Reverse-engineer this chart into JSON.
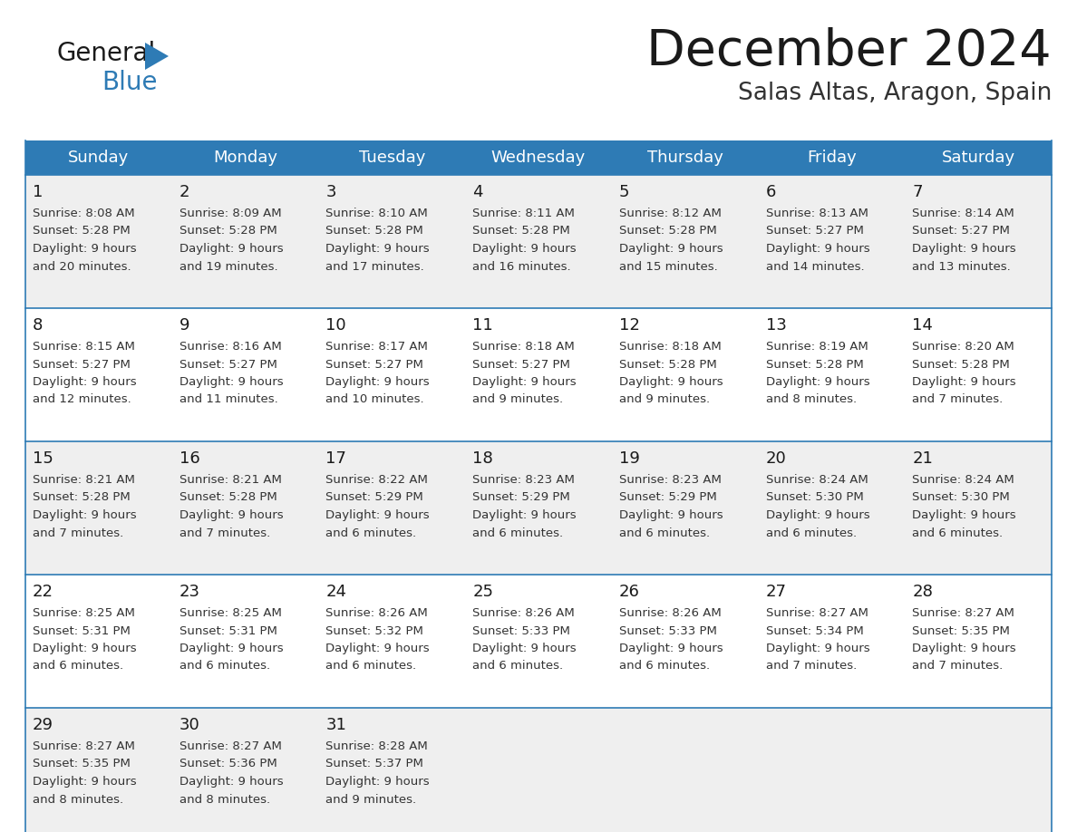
{
  "title": "December 2024",
  "subtitle": "Salas Altas, Aragon, Spain",
  "header_color": "#2E7BB5",
  "header_text_color": "#FFFFFF",
  "day_names": [
    "Sunday",
    "Monday",
    "Tuesday",
    "Wednesday",
    "Thursday",
    "Friday",
    "Saturday"
  ],
  "bg_color": "#FFFFFF",
  "cell_bg_even": "#EFEFEF",
  "cell_bg_odd": "#FFFFFF",
  "border_color": "#2E7BB5",
  "text_color": "#333333",
  "logo_general_color": "#1a1a1a",
  "logo_blue_color": "#2E7BB5",
  "title_color": "#1a1a1a",
  "subtitle_color": "#333333",
  "days": [
    {
      "day": 1,
      "col": 0,
      "row": 0,
      "sunrise": "8:08 AM",
      "sunset": "5:28 PM",
      "daylight_h": "9 hours",
      "daylight_m": "and 20 minutes."
    },
    {
      "day": 2,
      "col": 1,
      "row": 0,
      "sunrise": "8:09 AM",
      "sunset": "5:28 PM",
      "daylight_h": "9 hours",
      "daylight_m": "and 19 minutes."
    },
    {
      "day": 3,
      "col": 2,
      "row": 0,
      "sunrise": "8:10 AM",
      "sunset": "5:28 PM",
      "daylight_h": "9 hours",
      "daylight_m": "and 17 minutes."
    },
    {
      "day": 4,
      "col": 3,
      "row": 0,
      "sunrise": "8:11 AM",
      "sunset": "5:28 PM",
      "daylight_h": "9 hours",
      "daylight_m": "and 16 minutes."
    },
    {
      "day": 5,
      "col": 4,
      "row": 0,
      "sunrise": "8:12 AM",
      "sunset": "5:28 PM",
      "daylight_h": "9 hours",
      "daylight_m": "and 15 minutes."
    },
    {
      "day": 6,
      "col": 5,
      "row": 0,
      "sunrise": "8:13 AM",
      "sunset": "5:27 PM",
      "daylight_h": "9 hours",
      "daylight_m": "and 14 minutes."
    },
    {
      "day": 7,
      "col": 6,
      "row": 0,
      "sunrise": "8:14 AM",
      "sunset": "5:27 PM",
      "daylight_h": "9 hours",
      "daylight_m": "and 13 minutes."
    },
    {
      "day": 8,
      "col": 0,
      "row": 1,
      "sunrise": "8:15 AM",
      "sunset": "5:27 PM",
      "daylight_h": "9 hours",
      "daylight_m": "and 12 minutes."
    },
    {
      "day": 9,
      "col": 1,
      "row": 1,
      "sunrise": "8:16 AM",
      "sunset": "5:27 PM",
      "daylight_h": "9 hours",
      "daylight_m": "and 11 minutes."
    },
    {
      "day": 10,
      "col": 2,
      "row": 1,
      "sunrise": "8:17 AM",
      "sunset": "5:27 PM",
      "daylight_h": "9 hours",
      "daylight_m": "and 10 minutes."
    },
    {
      "day": 11,
      "col": 3,
      "row": 1,
      "sunrise": "8:18 AM",
      "sunset": "5:27 PM",
      "daylight_h": "9 hours",
      "daylight_m": "and 9 minutes."
    },
    {
      "day": 12,
      "col": 4,
      "row": 1,
      "sunrise": "8:18 AM",
      "sunset": "5:28 PM",
      "daylight_h": "9 hours",
      "daylight_m": "and 9 minutes."
    },
    {
      "day": 13,
      "col": 5,
      "row": 1,
      "sunrise": "8:19 AM",
      "sunset": "5:28 PM",
      "daylight_h": "9 hours",
      "daylight_m": "and 8 minutes."
    },
    {
      "day": 14,
      "col": 6,
      "row": 1,
      "sunrise": "8:20 AM",
      "sunset": "5:28 PM",
      "daylight_h": "9 hours",
      "daylight_m": "and 7 minutes."
    },
    {
      "day": 15,
      "col": 0,
      "row": 2,
      "sunrise": "8:21 AM",
      "sunset": "5:28 PM",
      "daylight_h": "9 hours",
      "daylight_m": "and 7 minutes."
    },
    {
      "day": 16,
      "col": 1,
      "row": 2,
      "sunrise": "8:21 AM",
      "sunset": "5:28 PM",
      "daylight_h": "9 hours",
      "daylight_m": "and 7 minutes."
    },
    {
      "day": 17,
      "col": 2,
      "row": 2,
      "sunrise": "8:22 AM",
      "sunset": "5:29 PM",
      "daylight_h": "9 hours",
      "daylight_m": "and 6 minutes."
    },
    {
      "day": 18,
      "col": 3,
      "row": 2,
      "sunrise": "8:23 AM",
      "sunset": "5:29 PM",
      "daylight_h": "9 hours",
      "daylight_m": "and 6 minutes."
    },
    {
      "day": 19,
      "col": 4,
      "row": 2,
      "sunrise": "8:23 AM",
      "sunset": "5:29 PM",
      "daylight_h": "9 hours",
      "daylight_m": "and 6 minutes."
    },
    {
      "day": 20,
      "col": 5,
      "row": 2,
      "sunrise": "8:24 AM",
      "sunset": "5:30 PM",
      "daylight_h": "9 hours",
      "daylight_m": "and 6 minutes."
    },
    {
      "day": 21,
      "col": 6,
      "row": 2,
      "sunrise": "8:24 AM",
      "sunset": "5:30 PM",
      "daylight_h": "9 hours",
      "daylight_m": "and 6 minutes."
    },
    {
      "day": 22,
      "col": 0,
      "row": 3,
      "sunrise": "8:25 AM",
      "sunset": "5:31 PM",
      "daylight_h": "9 hours",
      "daylight_m": "and 6 minutes."
    },
    {
      "day": 23,
      "col": 1,
      "row": 3,
      "sunrise": "8:25 AM",
      "sunset": "5:31 PM",
      "daylight_h": "9 hours",
      "daylight_m": "and 6 minutes."
    },
    {
      "day": 24,
      "col": 2,
      "row": 3,
      "sunrise": "8:26 AM",
      "sunset": "5:32 PM",
      "daylight_h": "9 hours",
      "daylight_m": "and 6 minutes."
    },
    {
      "day": 25,
      "col": 3,
      "row": 3,
      "sunrise": "8:26 AM",
      "sunset": "5:33 PM",
      "daylight_h": "9 hours",
      "daylight_m": "and 6 minutes."
    },
    {
      "day": 26,
      "col": 4,
      "row": 3,
      "sunrise": "8:26 AM",
      "sunset": "5:33 PM",
      "daylight_h": "9 hours",
      "daylight_m": "and 6 minutes."
    },
    {
      "day": 27,
      "col": 5,
      "row": 3,
      "sunrise": "8:27 AM",
      "sunset": "5:34 PM",
      "daylight_h": "9 hours",
      "daylight_m": "and 7 minutes."
    },
    {
      "day": 28,
      "col": 6,
      "row": 3,
      "sunrise": "8:27 AM",
      "sunset": "5:35 PM",
      "daylight_h": "9 hours",
      "daylight_m": "and 7 minutes."
    },
    {
      "day": 29,
      "col": 0,
      "row": 4,
      "sunrise": "8:27 AM",
      "sunset": "5:35 PM",
      "daylight_h": "9 hours",
      "daylight_m": "and 8 minutes."
    },
    {
      "day": 30,
      "col": 1,
      "row": 4,
      "sunrise": "8:27 AM",
      "sunset": "5:36 PM",
      "daylight_h": "9 hours",
      "daylight_m": "and 8 minutes."
    },
    {
      "day": 31,
      "col": 2,
      "row": 4,
      "sunrise": "8:28 AM",
      "sunset": "5:37 PM",
      "daylight_h": "9 hours",
      "daylight_m": "and 9 minutes."
    }
  ]
}
